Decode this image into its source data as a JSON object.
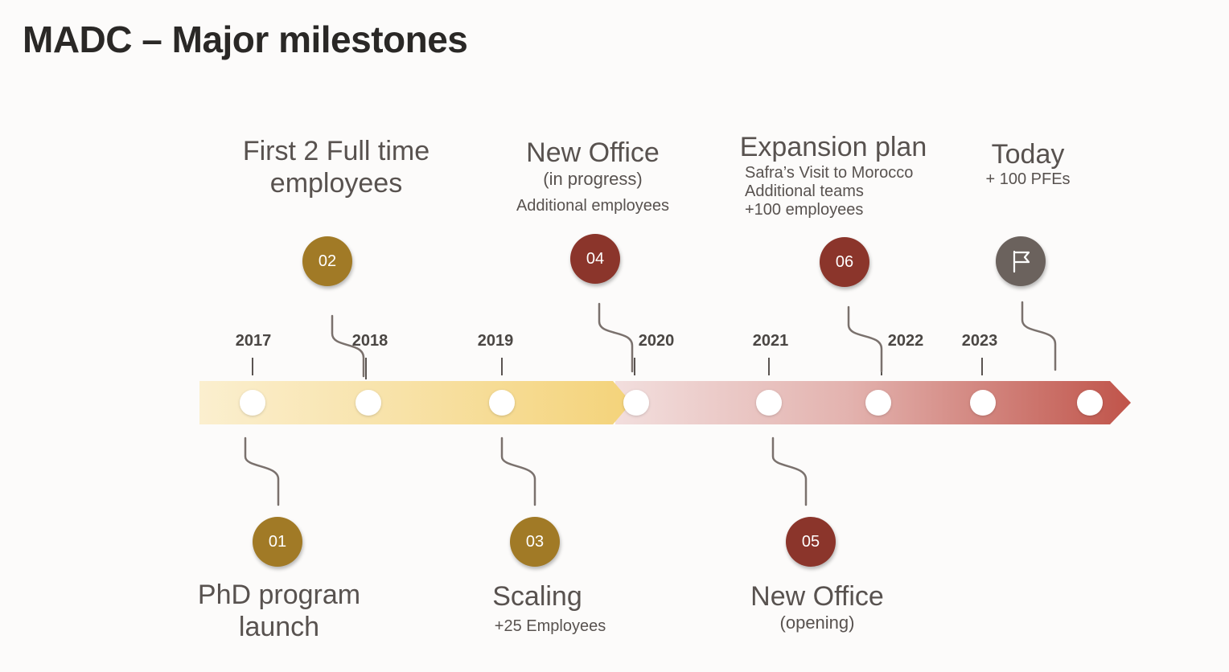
{
  "title": "MADC – Major milestones",
  "years": [
    "2017",
    "2018",
    "2019",
    "2020",
    "2021",
    "2022",
    "2023"
  ],
  "milestones": [
    {
      "badge": "01",
      "title_lines": [
        "PhD program",
        "launch"
      ],
      "sub_lines": []
    },
    {
      "badge": "02",
      "title_lines": [
        "First 2 Full time",
        "employees"
      ],
      "sub_lines": []
    },
    {
      "badge": "03",
      "title_lines": [
        "Scaling"
      ],
      "sub_lines": [
        "+25 Employees"
      ]
    },
    {
      "badge": "04",
      "title_lines": [
        "New Office"
      ],
      "sub_lines": [
        "(in progress)",
        "Additional employees"
      ]
    },
    {
      "badge": "05",
      "title_lines": [
        "New Office"
      ],
      "sub_lines": [
        "(opening)"
      ]
    },
    {
      "badge": "06",
      "title_lines": [
        "Expansion plan"
      ],
      "sub_lines": [
        "Safra’s Visit to Morocco",
        "Additional teams",
        "+100 employees"
      ]
    },
    {
      "badge_icon": "flag-icon",
      "title_lines": [
        "Today"
      ],
      "sub_lines": [
        "+ 100 PFEs"
      ]
    }
  ],
  "colors": {
    "gold_badge": "#a17a26",
    "red_badge": "#8b352b",
    "gray_badge": "#6b625d",
    "band_gold_light": "#fbefcf",
    "band_gold": "#f4d37a",
    "band_rose_light": "#f2dedd",
    "band_red": "#c0544a"
  }
}
